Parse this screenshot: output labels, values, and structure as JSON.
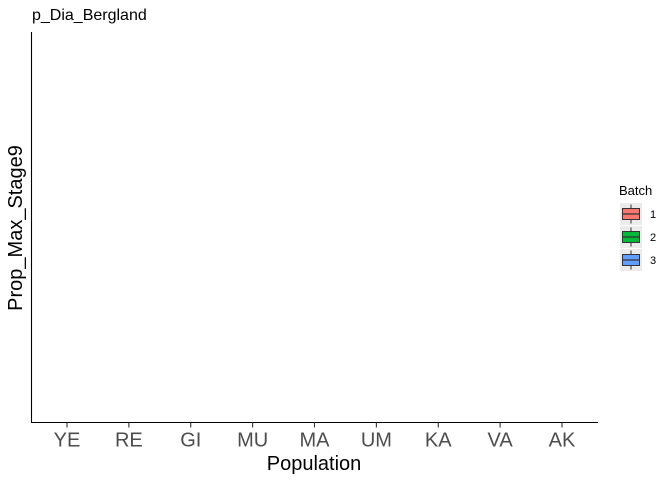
{
  "chart_data": {
    "type": "box",
    "title": "p_Dia_Bergland",
    "xlabel": "Population",
    "ylabel": "Prop_Max_Stage9",
    "categories": [
      "YE",
      "RE",
      "GI",
      "MU",
      "MA",
      "UM",
      "KA",
      "VA",
      "AK"
    ],
    "series": [
      {
        "name": "1",
        "values": []
      },
      {
        "name": "2",
        "values": []
      },
      {
        "name": "3",
        "values": []
      }
    ],
    "legend": {
      "title": "Batch",
      "placement": "right",
      "items": [
        {
          "label": "1",
          "color": "#F8766D"
        },
        {
          "label": "2",
          "color": "#00BA38"
        },
        {
          "label": "3",
          "color": "#619CFF"
        }
      ]
    },
    "grid": false,
    "yticks": []
  }
}
